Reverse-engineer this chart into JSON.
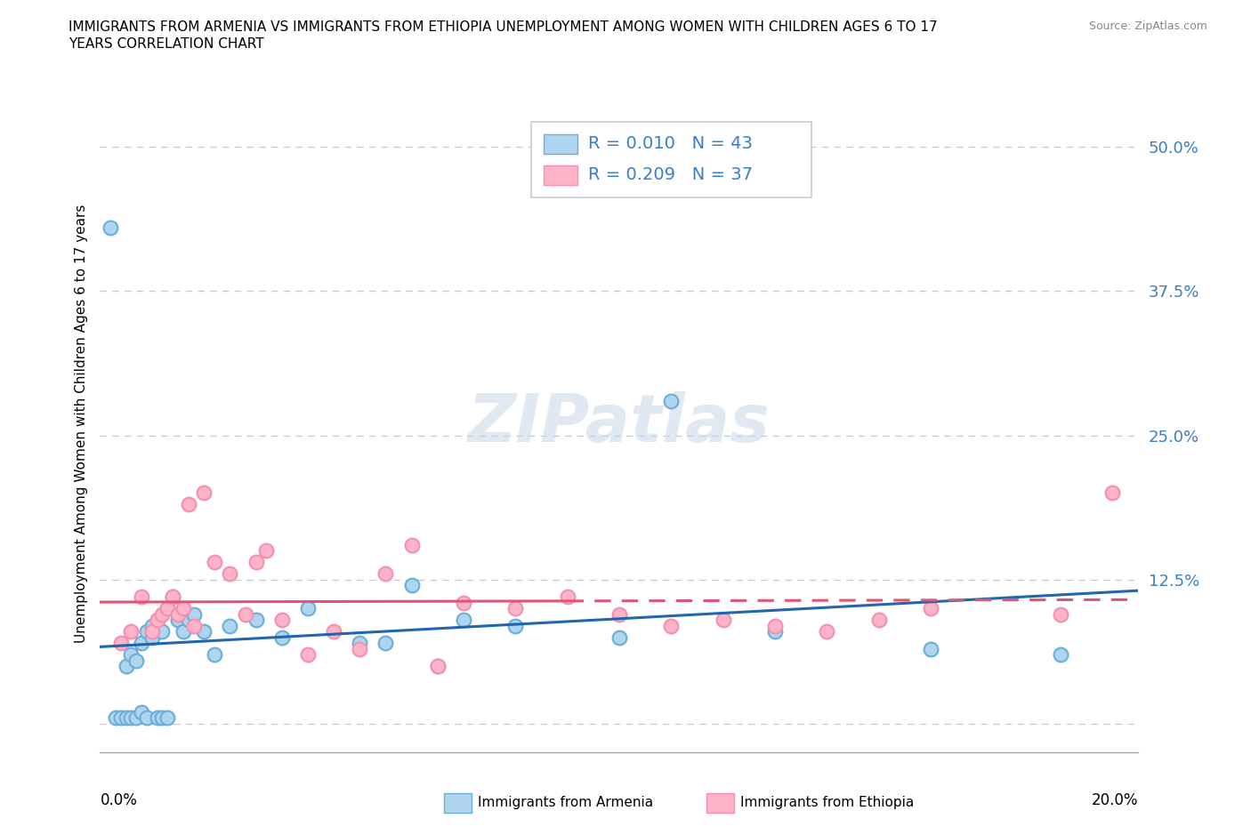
{
  "title_line1": "IMMIGRANTS FROM ARMENIA VS IMMIGRANTS FROM ETHIOPIA UNEMPLOYMENT AMONG WOMEN WITH CHILDREN AGES 6 TO 17",
  "title_line2": "YEARS CORRELATION CHART",
  "source": "Source: ZipAtlas.com",
  "ylabel": "Unemployment Among Women with Children Ages 6 to 17 years",
  "xmin": 0.0,
  "xmax": 0.2,
  "ymin": -0.025,
  "ymax": 0.545,
  "armenia_color_face": "#aed4f0",
  "armenia_color_edge": "#6baed6",
  "ethiopia_color_face": "#ffb3c6",
  "ethiopia_color_edge": "#f48fb1",
  "armenia_line_color": "#2166ac",
  "ethiopia_line_color": "#e05577",
  "legend_text_color": "#3a7dc9",
  "grid_color": "#c8c8c8",
  "yaxis_label_color": "#3a7dc9",
  "armenia_R": "0.010",
  "armenia_N": "43",
  "ethiopia_R": "0.209",
  "ethiopia_N": "37",
  "ytick_vals": [
    0.0,
    0.125,
    0.25,
    0.375,
    0.5
  ],
  "ytick_labels": [
    "",
    "12.5%",
    "25.0%",
    "37.5%",
    "50.0%"
  ],
  "arm_x": [
    0.002,
    0.003,
    0.004,
    0.005,
    0.005,
    0.006,
    0.006,
    0.007,
    0.007,
    0.008,
    0.008,
    0.009,
    0.009,
    0.01,
    0.01,
    0.011,
    0.011,
    0.012,
    0.012,
    0.013,
    0.013,
    0.014,
    0.015,
    0.016,
    0.017,
    0.018,
    0.02,
    0.022,
    0.025,
    0.03,
    0.035,
    0.04,
    0.05,
    0.055,
    0.06,
    0.065,
    0.07,
    0.08,
    0.1,
    0.11,
    0.13,
    0.16,
    0.185
  ],
  "arm_y": [
    0.43,
    0.005,
    0.005,
    0.05,
    0.005,
    0.06,
    0.005,
    0.055,
    0.005,
    0.07,
    0.01,
    0.08,
    0.005,
    0.085,
    0.075,
    0.09,
    0.005,
    0.08,
    0.005,
    0.1,
    0.005,
    0.11,
    0.09,
    0.08,
    0.09,
    0.095,
    0.08,
    0.06,
    0.085,
    0.09,
    0.075,
    0.1,
    0.07,
    0.07,
    0.12,
    0.05,
    0.09,
    0.085,
    0.075,
    0.28,
    0.08,
    0.065,
    0.06
  ],
  "eth_x": [
    0.004,
    0.006,
    0.008,
    0.01,
    0.011,
    0.012,
    0.013,
    0.014,
    0.015,
    0.016,
    0.017,
    0.018,
    0.02,
    0.022,
    0.025,
    0.028,
    0.03,
    0.032,
    0.035,
    0.04,
    0.045,
    0.05,
    0.055,
    0.06,
    0.065,
    0.07,
    0.08,
    0.09,
    0.1,
    0.11,
    0.12,
    0.13,
    0.14,
    0.15,
    0.16,
    0.185,
    0.195
  ],
  "eth_y": [
    0.07,
    0.08,
    0.11,
    0.08,
    0.09,
    0.095,
    0.1,
    0.11,
    0.095,
    0.1,
    0.19,
    0.085,
    0.2,
    0.14,
    0.13,
    0.095,
    0.14,
    0.15,
    0.09,
    0.06,
    0.08,
    0.065,
    0.13,
    0.155,
    0.05,
    0.105,
    0.1,
    0.11,
    0.095,
    0.085,
    0.09,
    0.085,
    0.08,
    0.09,
    0.1,
    0.095,
    0.2
  ]
}
